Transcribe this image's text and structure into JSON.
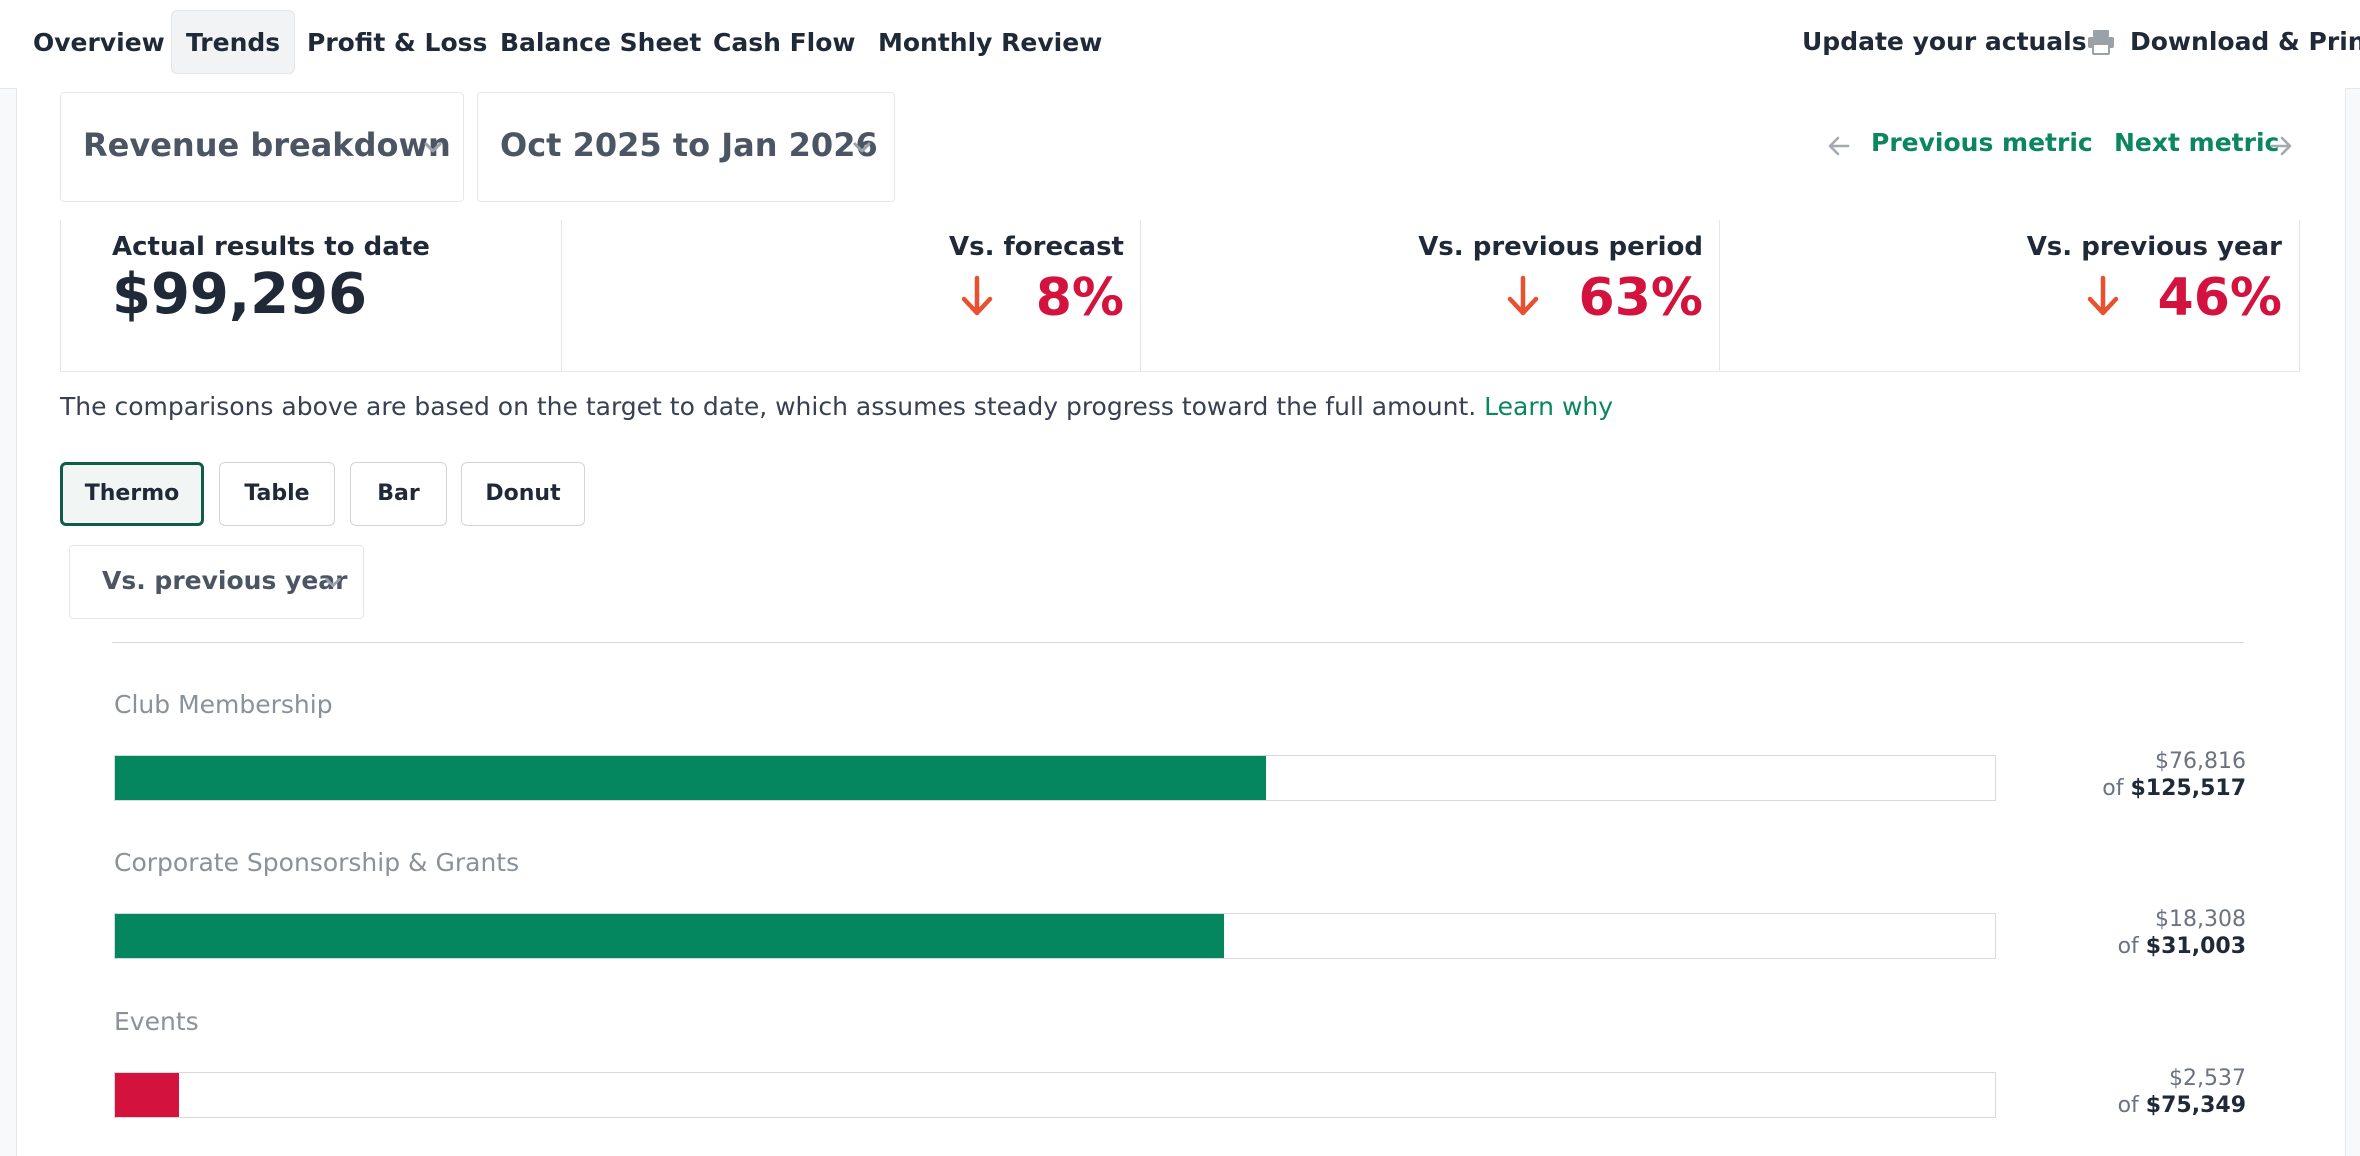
{
  "nav": {
    "tabs": [
      "Overview",
      "Trends",
      "Profit & Loss",
      "Balance Sheet",
      "Cash Flow",
      "Monthly Review"
    ],
    "active_tab": "Trends",
    "update_actuals": "Update your actuals",
    "download_print": "Download & Print"
  },
  "filters": {
    "metric": "Revenue breakdown",
    "period": "Oct 2025 to Jan 2026",
    "previous_metric": "Previous metric",
    "next_metric": "Next metric"
  },
  "stats": {
    "actual_label": "Actual results to date",
    "actual_value": "$99,296",
    "vs_forecast_label": "Vs. forecast",
    "vs_forecast_value": "8%",
    "vs_prev_period_label": "Vs. previous period",
    "vs_prev_period_value": "63%",
    "vs_prev_year_label": "Vs. previous year",
    "vs_prev_year_value": "46%"
  },
  "note": {
    "text": "The comparisons above are based on the target to date, which assumes steady progress toward the full amount.",
    "link": "Learn why"
  },
  "views": {
    "buttons": [
      "Thermo",
      "Table",
      "Bar",
      "Donut"
    ],
    "active": "Thermo",
    "comparison": "Vs. previous year"
  },
  "colors": {
    "accent": "#0a8660",
    "bar_ok": "#04875f",
    "bar_bad": "#d3123e",
    "negative": "#d3123e"
  },
  "categories": [
    {
      "name": "Club Membership",
      "actual": "$76,816",
      "of_label": "of",
      "target": "$125,517",
      "progress": 0.612,
      "status": "ok"
    },
    {
      "name": "Corporate Sponsorship & Grants",
      "actual": "$18,308",
      "of_label": "of",
      "target": "$31,003",
      "progress": 0.59,
      "status": "ok"
    },
    {
      "name": "Events",
      "actual": "$2,537",
      "of_label": "of",
      "target": "$75,349",
      "progress": 0.034,
      "status": "bad"
    }
  ]
}
